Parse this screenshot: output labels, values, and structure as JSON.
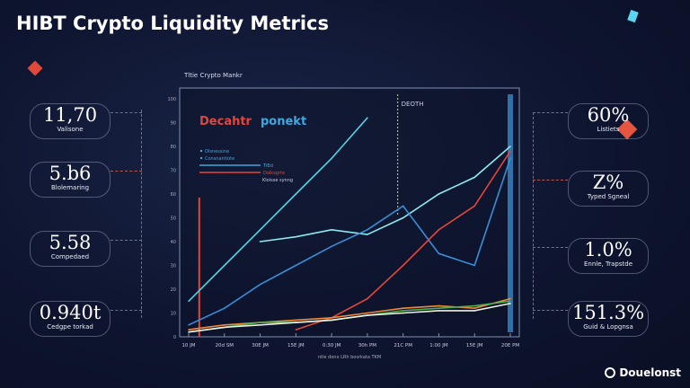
{
  "title": "HIBT Crypto Liquidity Metrics",
  "left_cards": [
    {
      "value": "11,70",
      "label": "Valisone"
    },
    {
      "value": "5.b6",
      "label": "Blolemaring"
    },
    {
      "value": "5.58",
      "label": "Compedaed"
    },
    {
      "value": "0.940t",
      "label": "Cedgpe torkad"
    }
  ],
  "right_cards": [
    {
      "value": "60%",
      "label": "Listiets"
    },
    {
      "value": "Z%",
      "label": "Typed Sgneal"
    },
    {
      "value": "1.0%",
      "label": "Ennle, Trapstde"
    },
    {
      "value": "151.3%",
      "label": "Guid & Lopgnsa"
    }
  ],
  "brand": "Douelonst",
  "chart_data": {
    "type": "line",
    "title": "Tltie Crypto Mankr",
    "chart_heading": [
      "Decahtr",
      "ponekt"
    ],
    "xlabel": "ntle dono LRh bosrkata TKM",
    "annotation": "DEOTH",
    "legend": [
      "Olsnessine",
      "Consnantiote",
      "TiBd",
      "Dalksgrte",
      "Kloisse synng"
    ],
    "legend_placement": "top-left",
    "grid": false,
    "categories": [
      "10 JM",
      "20d SM",
      "30E JM",
      "15E JM",
      "0:30 JM",
      "30h PM",
      "21C PM",
      "1:00 JM",
      "15E JM",
      "20E PM"
    ],
    "ylim": [
      0,
      100
    ],
    "yticks": [
      0,
      10,
      20,
      30,
      40,
      50,
      60,
      70,
      80,
      90,
      100
    ],
    "series": [
      {
        "color": "#4fd3e6",
        "values": [
          15,
          30,
          45,
          60,
          75,
          92,
          null,
          null,
          null,
          null
        ]
      },
      {
        "color": "#8ee8f0",
        "values": [
          null,
          null,
          40,
          42,
          45,
          43,
          50,
          60,
          67,
          80
        ]
      },
      {
        "color": "#3a8fd8",
        "values": [
          5,
          12,
          22,
          30,
          38,
          45,
          55,
          35,
          30,
          75
        ]
      },
      {
        "color": "#e2463c",
        "values": [
          null,
          null,
          null,
          3,
          8,
          16,
          30,
          45,
          55,
          78
        ]
      },
      {
        "color": "#f08a3a",
        "values": [
          3,
          5,
          6,
          7,
          8,
          10,
          12,
          13,
          12,
          16
        ]
      },
      {
        "color": "#4caf50",
        "values": [
          2,
          4,
          6,
          6,
          7,
          9,
          11,
          12,
          13,
          15
        ]
      },
      {
        "color": "#f0f0e0",
        "values": [
          2,
          4,
          5,
          6,
          7,
          9,
          10,
          11,
          11,
          14
        ]
      }
    ],
    "vline_red_at": "20d SM",
    "vline_dashed_at": "21C PM"
  }
}
